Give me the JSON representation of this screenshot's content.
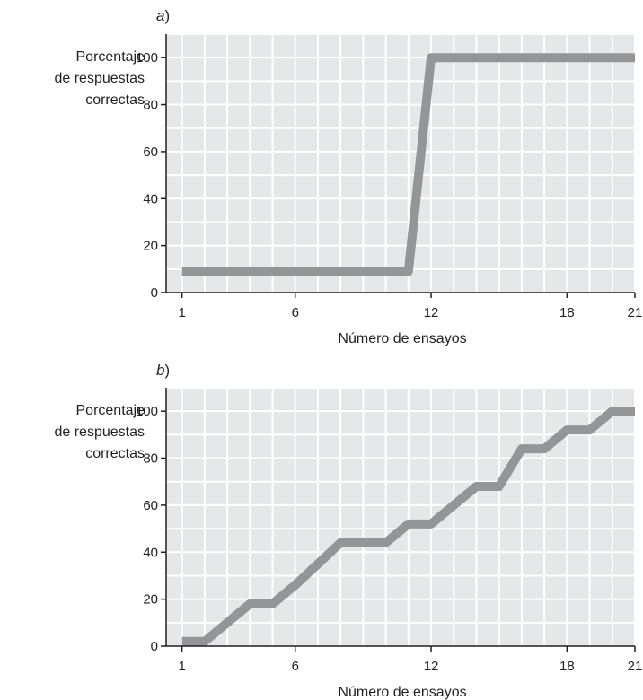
{
  "colors": {
    "plot_background": "#e6e7e8",
    "gridline": "#ffffff",
    "series_line": "#939598",
    "axis": "#231f20",
    "text": "#231f20"
  },
  "chart_data": [
    {
      "type": "line",
      "panel_label": "a",
      "ylabel": [
        "Porcentaje",
        "de respuestas",
        "correctas"
      ],
      "xlabel": "Número de ensayos",
      "x_ticks": [
        1,
        6,
        12,
        18,
        21
      ],
      "y_ticks": [
        0,
        20,
        40,
        60,
        80,
        100
      ],
      "xlim": [
        0.3,
        21
      ],
      "ylim": [
        0,
        110
      ],
      "grid": true,
      "series": [
        {
          "x": [
            1,
            2,
            3,
            4,
            5,
            6,
            7,
            8,
            9,
            10,
            11,
            12,
            13,
            14,
            15,
            16,
            17,
            18,
            19,
            20,
            21
          ],
          "values": [
            9,
            9,
            9,
            9,
            9,
            9,
            9,
            9,
            9,
            9,
            9,
            100,
            100,
            100,
            100,
            100,
            100,
            100,
            100,
            100,
            100
          ]
        }
      ]
    },
    {
      "type": "line",
      "panel_label": "b",
      "ylabel": [
        "Porcentaje",
        "de respuestas",
        "correctas"
      ],
      "xlabel": "Número de ensayos",
      "x_ticks": [
        1,
        6,
        12,
        18,
        21
      ],
      "y_ticks": [
        0,
        20,
        40,
        60,
        80,
        100
      ],
      "xlim": [
        0.3,
        21
      ],
      "ylim": [
        0,
        110
      ],
      "grid": true,
      "series": [
        {
          "x": [
            1,
            2,
            3,
            4,
            5,
            6,
            7,
            8,
            9,
            10,
            11,
            12,
            13,
            14,
            15,
            16,
            17,
            18,
            19,
            20,
            21
          ],
          "values": [
            2,
            2,
            10,
            18,
            18,
            26,
            35,
            44,
            44,
            44,
            52,
            52,
            60,
            68,
            68,
            84,
            84,
            92,
            92,
            100,
            100
          ]
        }
      ]
    }
  ]
}
